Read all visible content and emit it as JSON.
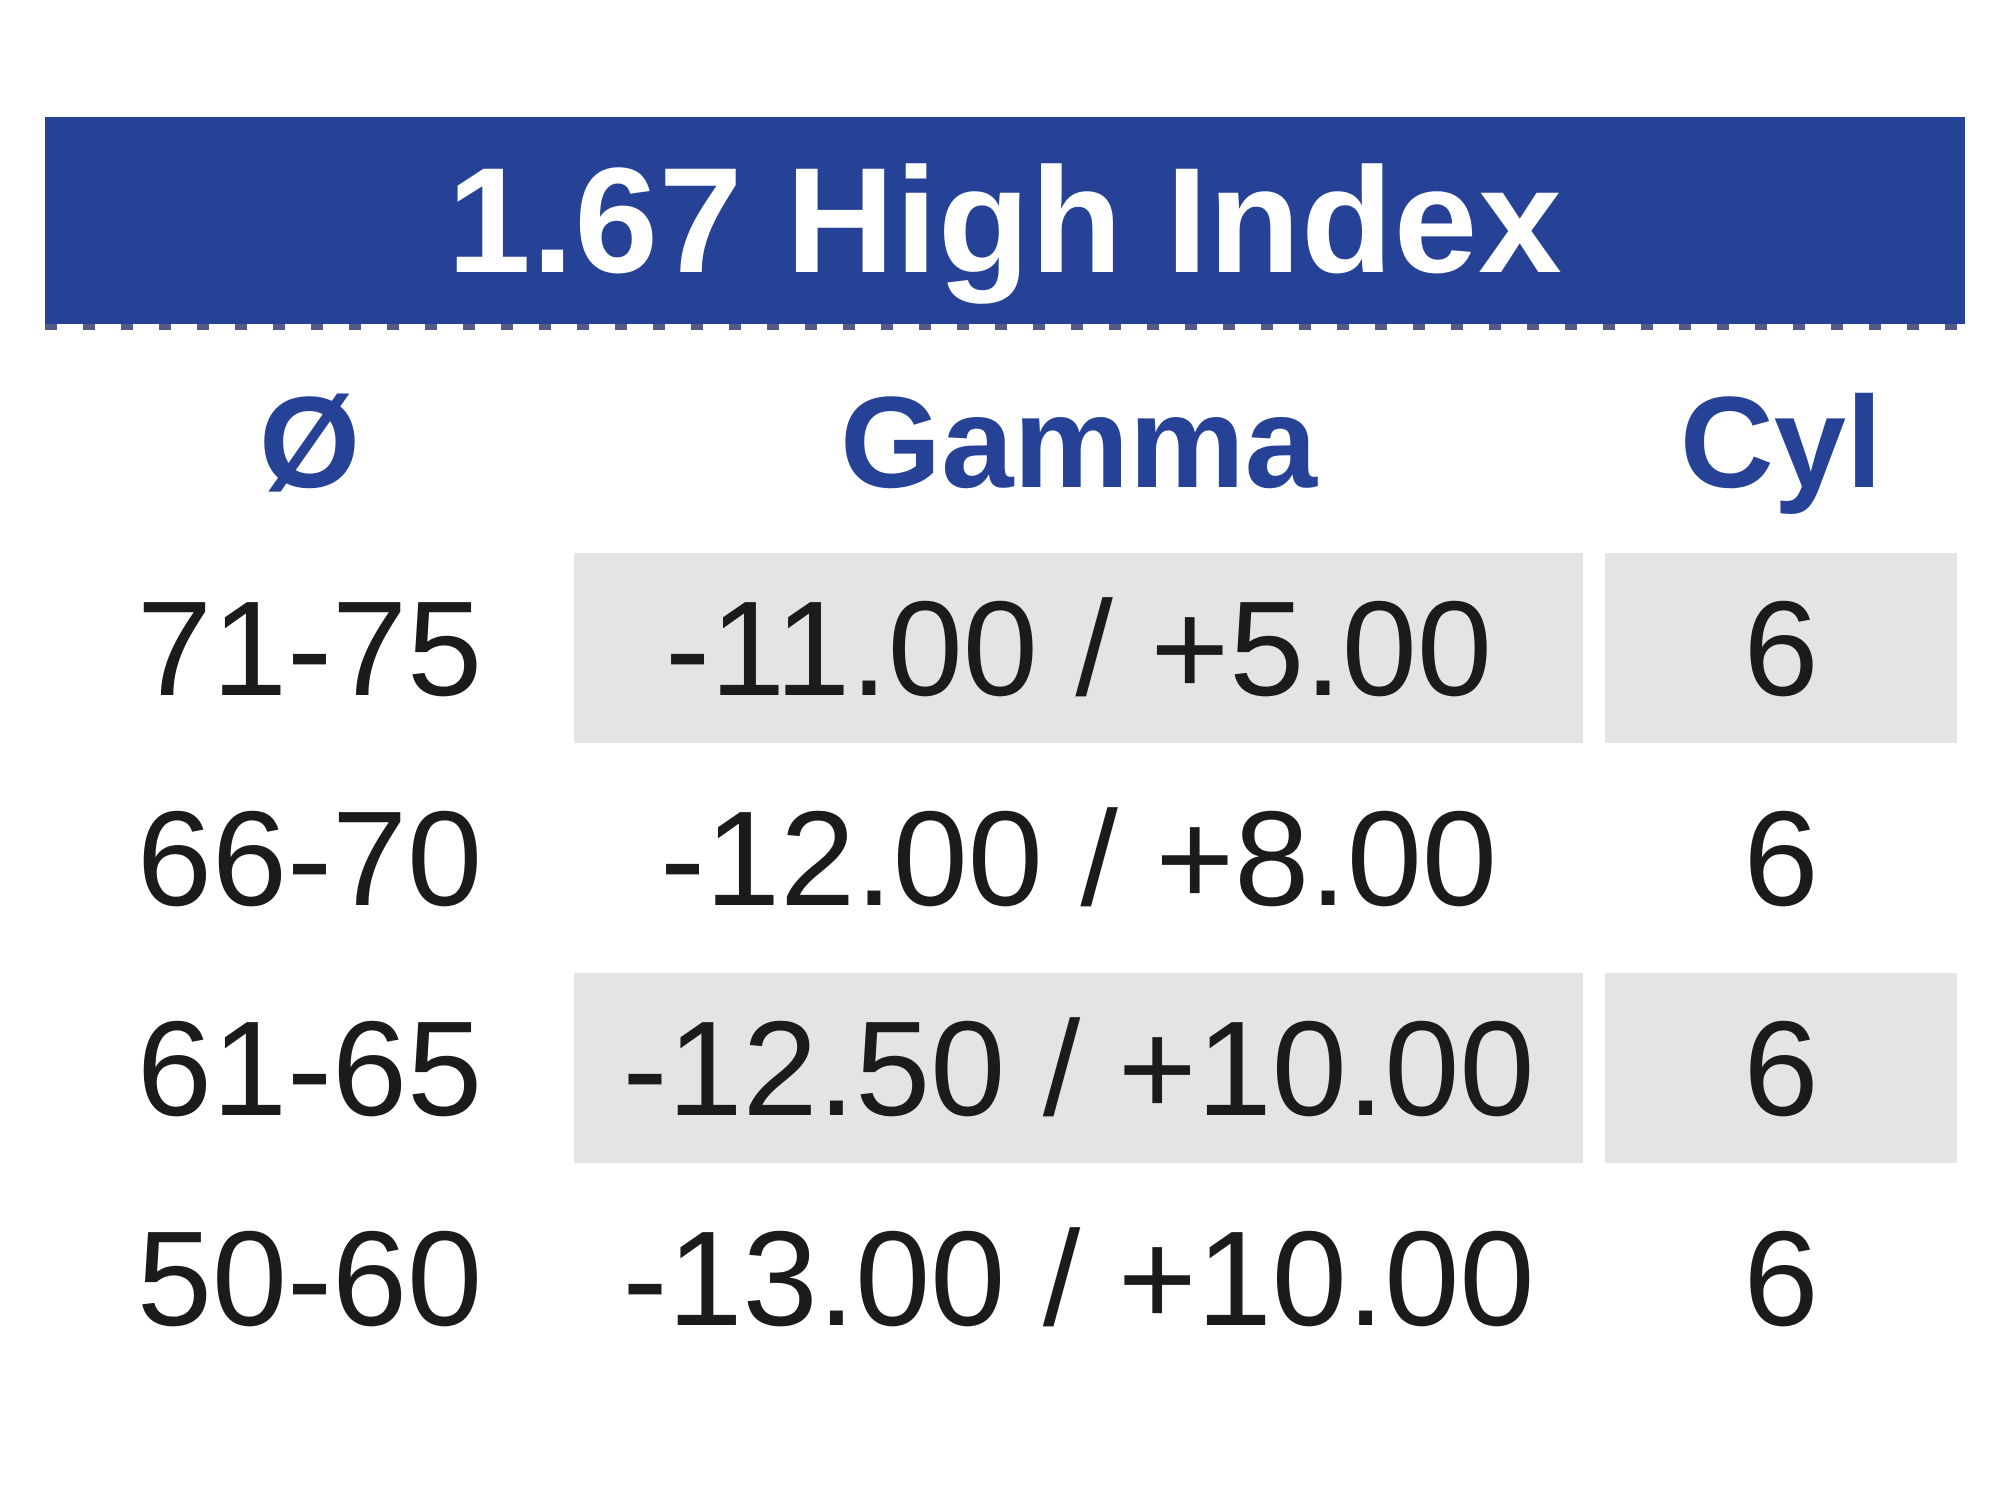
{
  "table": {
    "title": "1.67 High Index",
    "columns": [
      {
        "key": "diameter",
        "label": "Ø"
      },
      {
        "key": "gamma",
        "label": "Gamma"
      },
      {
        "key": "cyl",
        "label": "Cyl"
      }
    ],
    "rows": [
      {
        "diameter": "71-75",
        "gamma": "-11.00 / +5.00",
        "cyl": "6",
        "shaded": true
      },
      {
        "diameter": "66-70",
        "gamma": "-12.00 / +8.00",
        "cyl": "6",
        "shaded": false
      },
      {
        "diameter": "61-65",
        "gamma": "-12.50 / +10.00",
        "cyl": "6",
        "shaded": true
      },
      {
        "diameter": "50-60",
        "gamma": "-13.00 / +10.00",
        "cyl": "6",
        "shaded": false
      }
    ],
    "colors": {
      "title_bar_bg": "#254296",
      "title_text": "#ffffff",
      "column_header_text": "#254296",
      "shaded_cell_bg": "#e4e4e4",
      "body_text": "#1b1b1b"
    }
  }
}
